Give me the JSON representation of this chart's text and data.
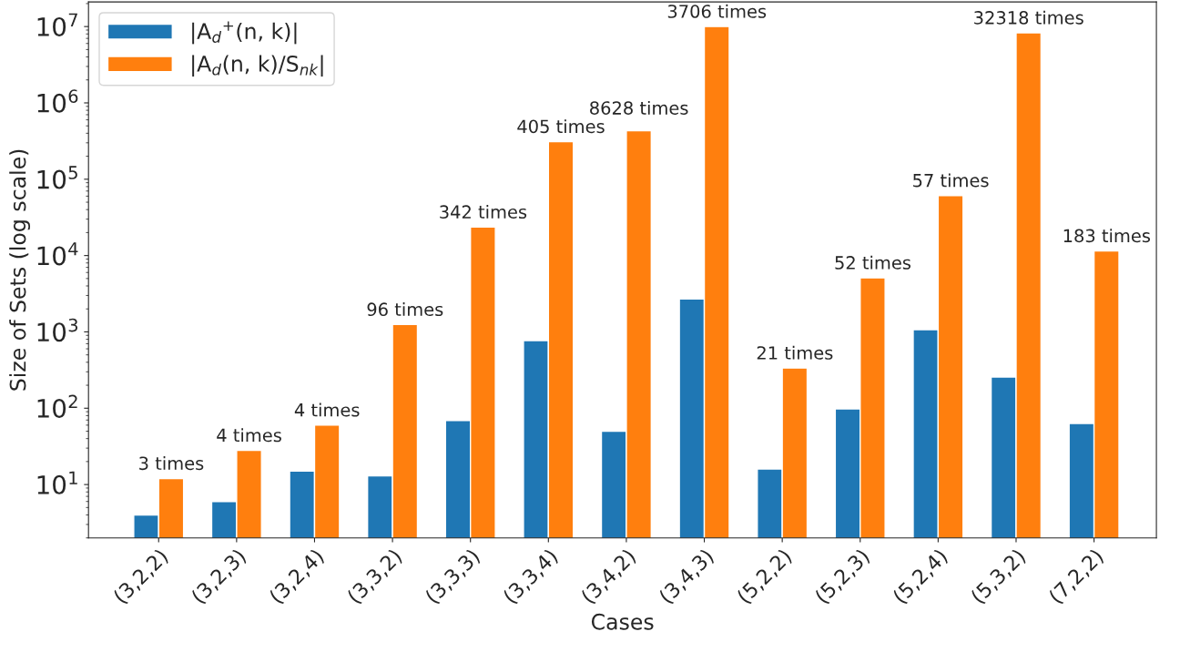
{
  "chart_data": {
    "type": "bar",
    "xlabel": "Cases",
    "ylabel": "Size of Sets (log scale)",
    "categories": [
      "(3,2,2)",
      "(3,2,3)",
      "(3,2,4)",
      "(3,3,2)",
      "(3,3,3)",
      "(3,3,4)",
      "(3,4,2)",
      "(3,4,3)",
      "(5,2,2)",
      "(5,2,3)",
      "(5,2,4)",
      "(5,3,2)",
      "(7,2,2)"
    ],
    "series": [
      {
        "name": "|A$_{d}$$^{+}$(n, k)|",
        "color": "#1f77b4",
        "values": [
          4,
          6,
          15,
          13,
          69,
          768,
          50,
          2700,
          16,
          98,
          1070,
          256,
          63
        ]
      },
      {
        "name": "|A$_{d}$(n, k)/S$_{nk}$|",
        "color": "#ff7f0e",
        "values": [
          12,
          28,
          60,
          1248,
          23600,
          311000,
          431400,
          10000000,
          336,
          5100,
          61000,
          8270000,
          11500
        ]
      }
    ],
    "log": "y",
    "ylim": [
      2,
      21000000
    ],
    "yticks": [
      {
        "value": 10,
        "label": "10$^{1}$"
      },
      {
        "value": 100,
        "label": "10$^{2}$"
      },
      {
        "value": 1000,
        "label": "10$^{3}$"
      },
      {
        "value": 10000,
        "label": "10$^{4}$"
      },
      {
        "value": 100000,
        "label": "10$^{5}$"
      },
      {
        "value": 1000000,
        "label": "10$^{6}$"
      },
      {
        "value": 10000000,
        "label": "10$^{7}$"
      }
    ],
    "legend": "top left",
    "grid": false,
    "annotations": [
      {
        "text": "3 times",
        "x": "(3,2,2)",
        "y": 12
      },
      {
        "text": "4 times",
        "x": "(3,2,3)",
        "y": 28
      },
      {
        "text": "4 times",
        "x": "(3,2,4)",
        "y": 60
      },
      {
        "text": "96 times",
        "x": "(3,3,2)",
        "y": 1248
      },
      {
        "text": "342 times",
        "x": "(3,3,3)",
        "y": 23600
      },
      {
        "text": "405 times",
        "x": "(3,3,4)",
        "y": 311000
      },
      {
        "text": "8628 times",
        "x": "(3,4,2)",
        "y": 431400
      },
      {
        "text": "3706 times",
        "x": "(3,4,3)",
        "y": 10000000
      },
      {
        "text": "21 times",
        "x": "(5,2,2)",
        "y": 336
      },
      {
        "text": "52 times",
        "x": "(5,2,3)",
        "y": 5100
      },
      {
        "text": "57 times",
        "x": "(5,2,4)",
        "y": 61000
      },
      {
        "text": "32318 times",
        "x": "(5,3,2)",
        "y": 8270000
      },
      {
        "text": "183 times",
        "x": "(7,2,2)",
        "y": 11500
      }
    ]
  }
}
